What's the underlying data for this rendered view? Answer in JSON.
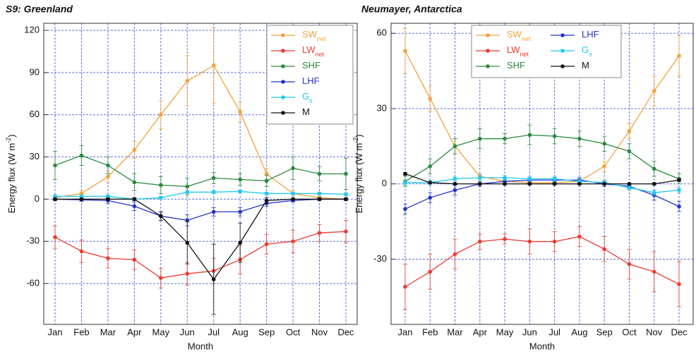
{
  "chart_data": [
    {
      "type": "line",
      "title": "S9: Greenland",
      "xlabel": "Month",
      "ylabel": "Energy flux (W m",
      "ylabel_sup": "-2",
      "ylabel_end": ")",
      "categories": [
        "Jan",
        "Feb",
        "Mar",
        "Apr",
        "May",
        "Jun",
        "Jul",
        "Aug",
        "Sep",
        "Oct",
        "Nov",
        "Dec"
      ],
      "ylim": [
        -89,
        125
      ],
      "yticks": [
        -60,
        -30,
        0,
        30,
        60,
        90,
        120
      ],
      "grid": true,
      "legend": "upper right",
      "legend_columns": 1,
      "series": [
        {
          "name": "SW",
          "subscript": "net",
          "color": "#f5a03c",
          "values": [
            1,
            4,
            16,
            35,
            60,
            84,
            95,
            62,
            18,
            4,
            1,
            0
          ],
          "errors": [
            1,
            2,
            4,
            6,
            10,
            18,
            27,
            7,
            4,
            2,
            1,
            0.5
          ]
        },
        {
          "name": "LW",
          "subscript": "net",
          "color": "#ee3b30",
          "values": [
            -27,
            -37,
            -42,
            -43,
            -56,
            -53,
            -51,
            -43,
            -32,
            -30,
            -24,
            -23
          ],
          "errors": [
            8,
            8,
            7,
            7,
            7,
            8,
            9,
            10,
            7,
            8,
            6,
            8
          ]
        },
        {
          "name": "SHF",
          "color": "#2a8a3c",
          "values": [
            24,
            31,
            24,
            12,
            10,
            9,
            15,
            14,
            13,
            22,
            18,
            18
          ],
          "errors": [
            10,
            7,
            6,
            6,
            6,
            6,
            4,
            4,
            4,
            8,
            5,
            11
          ]
        },
        {
          "name": "LHF",
          "color": "#2233cc",
          "values": [
            0,
            -0.5,
            -1,
            -5,
            -12,
            -15,
            -9,
            -9,
            -3,
            -1,
            0,
            0
          ],
          "errors": [
            1,
            1,
            2,
            3,
            3,
            4,
            3,
            3,
            2,
            1,
            1,
            1
          ]
        },
        {
          "name": "G",
          "subscript": "s",
          "color": "#22c8ee",
          "values": [
            2,
            2,
            2,
            0,
            1,
            5,
            5,
            5.5,
            4,
            4,
            4,
            3.5
          ],
          "errors": [
            1,
            1,
            1,
            1,
            1,
            1,
            1,
            1,
            1,
            1,
            1,
            1
          ]
        },
        {
          "name": "M",
          "color": "#111111",
          "values": [
            0,
            0,
            0,
            0,
            -12,
            -31,
            -57,
            -31,
            -1,
            0,
            0,
            0
          ],
          "errors": [
            0.5,
            0.5,
            0.5,
            1,
            3,
            15,
            25,
            14,
            2,
            0.5,
            0.5,
            0.5
          ]
        }
      ]
    },
    {
      "type": "line",
      "title": "Neumayer, Antarctica",
      "xlabel": "Month",
      "ylabel": "Energy flux (W m",
      "ylabel_sup": "-2",
      "ylabel_end": ")",
      "categories": [
        "Jan",
        "Feb",
        "Mar",
        "Apr",
        "May",
        "Jun",
        "Jul",
        "Aug",
        "Sep",
        "Oct",
        "Nov",
        "Dec"
      ],
      "ylim": [
        -56,
        64
      ],
      "yticks": [
        -30,
        0,
        30,
        60
      ],
      "grid": true,
      "legend": "upper center",
      "legend_columns": 2,
      "series": [
        {
          "name": "SW",
          "subscript": "net",
          "color": "#f5a03c",
          "values": [
            53,
            34,
            15,
            3,
            1,
            0.5,
            0.5,
            1,
            7,
            21,
            37,
            51
          ],
          "errors": [
            9,
            5,
            3,
            1,
            0.5,
            0.3,
            0.3,
            0.5,
            2,
            3,
            6,
            8
          ]
        },
        {
          "name": "LW",
          "subscript": "net",
          "color": "#ee3b30",
          "values": [
            -41,
            -35,
            -28,
            -23,
            -22,
            -23,
            -23,
            -21,
            -26,
            -32,
            -35,
            -40
          ],
          "errors": [
            9,
            7,
            6,
            3,
            2,
            5,
            4,
            4,
            5,
            6,
            8,
            9
          ]
        },
        {
          "name": "SHF",
          "color": "#2a8a3c",
          "values": [
            1,
            7,
            15,
            18,
            18,
            19.5,
            19,
            18,
            16,
            13,
            6,
            2
          ],
          "errors": [
            2,
            3,
            3,
            4,
            2,
            4,
            3,
            3,
            3,
            3,
            3,
            2
          ]
        },
        {
          "name": "LHF",
          "color": "#2233cc",
          "values": [
            -10,
            -5.5,
            -2.5,
            0,
            1,
            1.5,
            1.5,
            1.5,
            0,
            -1,
            -4.5,
            -9
          ],
          "errors": [
            2,
            2,
            2,
            1,
            1,
            1,
            1,
            1,
            1,
            1,
            2,
            2
          ]
        },
        {
          "name": "G",
          "subscript": "s",
          "color": "#22c8ee",
          "values": [
            0.5,
            0.5,
            2,
            2.5,
            2.5,
            2,
            2,
            1,
            0.5,
            -1.5,
            -3.5,
            -2.5
          ],
          "errors": [
            1,
            1,
            1,
            1,
            1,
            1,
            1,
            1,
            1,
            1,
            1,
            1
          ]
        },
        {
          "name": "M",
          "color": "#111111",
          "values": [
            4,
            0.5,
            0,
            0,
            0,
            0,
            0,
            0,
            0,
            0,
            0,
            1.5
          ],
          "errors": [
            0.5,
            0.3,
            0.3,
            0.3,
            0.3,
            0.3,
            0.3,
            0.3,
            0.3,
            0.3,
            0.3,
            0.5
          ]
        }
      ]
    }
  ]
}
